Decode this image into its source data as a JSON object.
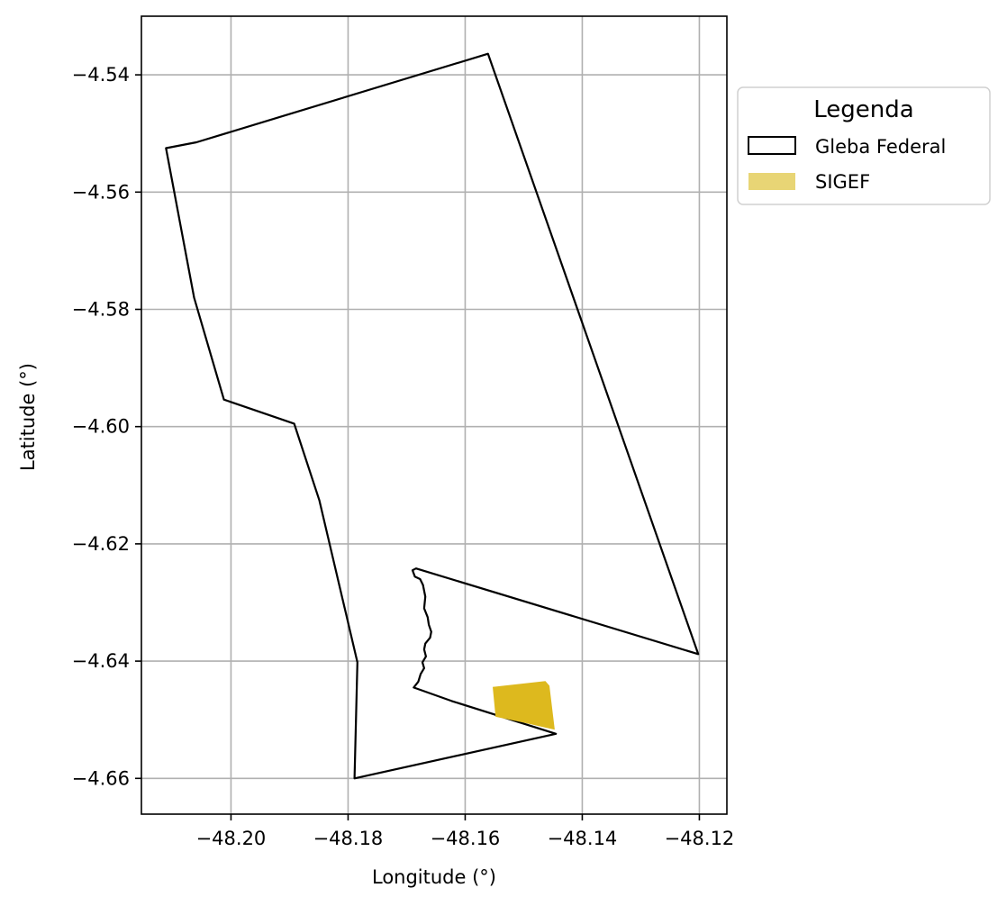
{
  "chart_data": {
    "type": "map",
    "xlabel": "Longitude (°)",
    "ylabel": "Latitude (°)",
    "xlim": [
      -48.2153,
      -48.1153
    ],
    "ylim": [
      -4.6661,
      -4.53
    ],
    "xticks": [
      -48.2,
      -48.18,
      -48.16,
      -48.14,
      -48.12
    ],
    "xtick_labels": [
      "−48.20",
      "−48.18",
      "−48.16",
      "−48.14",
      "−48.12"
    ],
    "yticks": [
      -4.54,
      -4.56,
      -4.58,
      -4.6,
      -4.62,
      -4.64,
      -4.66
    ],
    "ytick_labels": [
      "−4.54",
      "−4.56",
      "−4.58",
      "−4.60",
      "−4.62",
      "−4.64",
      "−4.66"
    ],
    "grid": true,
    "legend": {
      "title": "Legenda",
      "placement": "outside-top-right",
      "entries": [
        {
          "label": "Gleba Federal",
          "style": "outline",
          "edge": "#000000",
          "fill": "none"
        },
        {
          "label": "SIGEF",
          "style": "fill",
          "fill": "#e8d575"
        }
      ]
    },
    "layers": [
      {
        "name": "Gleba Federal",
        "edge": "#000000",
        "fill": "none",
        "coordinates": [
          [
            -48.1561,
            -4.5364
          ],
          [
            -48.1202,
            -4.6388
          ],
          [
            -48.1684,
            -4.6242
          ],
          [
            -48.169,
            -4.6245
          ],
          [
            -48.1686,
            -4.6256
          ],
          [
            -48.1677,
            -4.626
          ],
          [
            -48.1672,
            -4.627
          ],
          [
            -48.1668,
            -4.629
          ],
          [
            -48.167,
            -4.631
          ],
          [
            -48.1664,
            -4.6325
          ],
          [
            -48.1662,
            -4.6338
          ],
          [
            -48.1658,
            -4.635
          ],
          [
            -48.166,
            -4.636
          ],
          [
            -48.1668,
            -4.637
          ],
          [
            -48.167,
            -4.638
          ],
          [
            -48.1667,
            -4.6392
          ],
          [
            -48.1673,
            -4.6402
          ],
          [
            -48.167,
            -4.6412
          ],
          [
            -48.1676,
            -4.6422
          ],
          [
            -48.168,
            -4.6435
          ],
          [
            -48.1688,
            -4.6445
          ],
          [
            -48.1623,
            -4.6468
          ],
          [
            -48.1445,
            -4.6524
          ],
          [
            -48.1789,
            -4.66
          ],
          [
            -48.1784,
            -4.6402
          ],
          [
            -48.1849,
            -4.6126
          ],
          [
            -48.1892,
            -4.5995
          ],
          [
            -48.2012,
            -4.5954
          ],
          [
            -48.2063,
            -4.578
          ],
          [
            -48.2111,
            -4.5525
          ],
          [
            -48.2059,
            -4.5515
          ],
          [
            -48.1561,
            -4.5364
          ]
        ]
      },
      {
        "name": "SIGEF",
        "edge": "none",
        "fill": "#ddb91e",
        "coordinates": [
          [
            -48.1553,
            -4.6444
          ],
          [
            -48.1463,
            -4.6434
          ],
          [
            -48.1456,
            -4.6442
          ],
          [
            -48.1447,
            -4.6517
          ],
          [
            -48.15,
            -4.6505
          ],
          [
            -48.1548,
            -4.6495
          ],
          [
            -48.1553,
            -4.6444
          ]
        ]
      }
    ]
  }
}
